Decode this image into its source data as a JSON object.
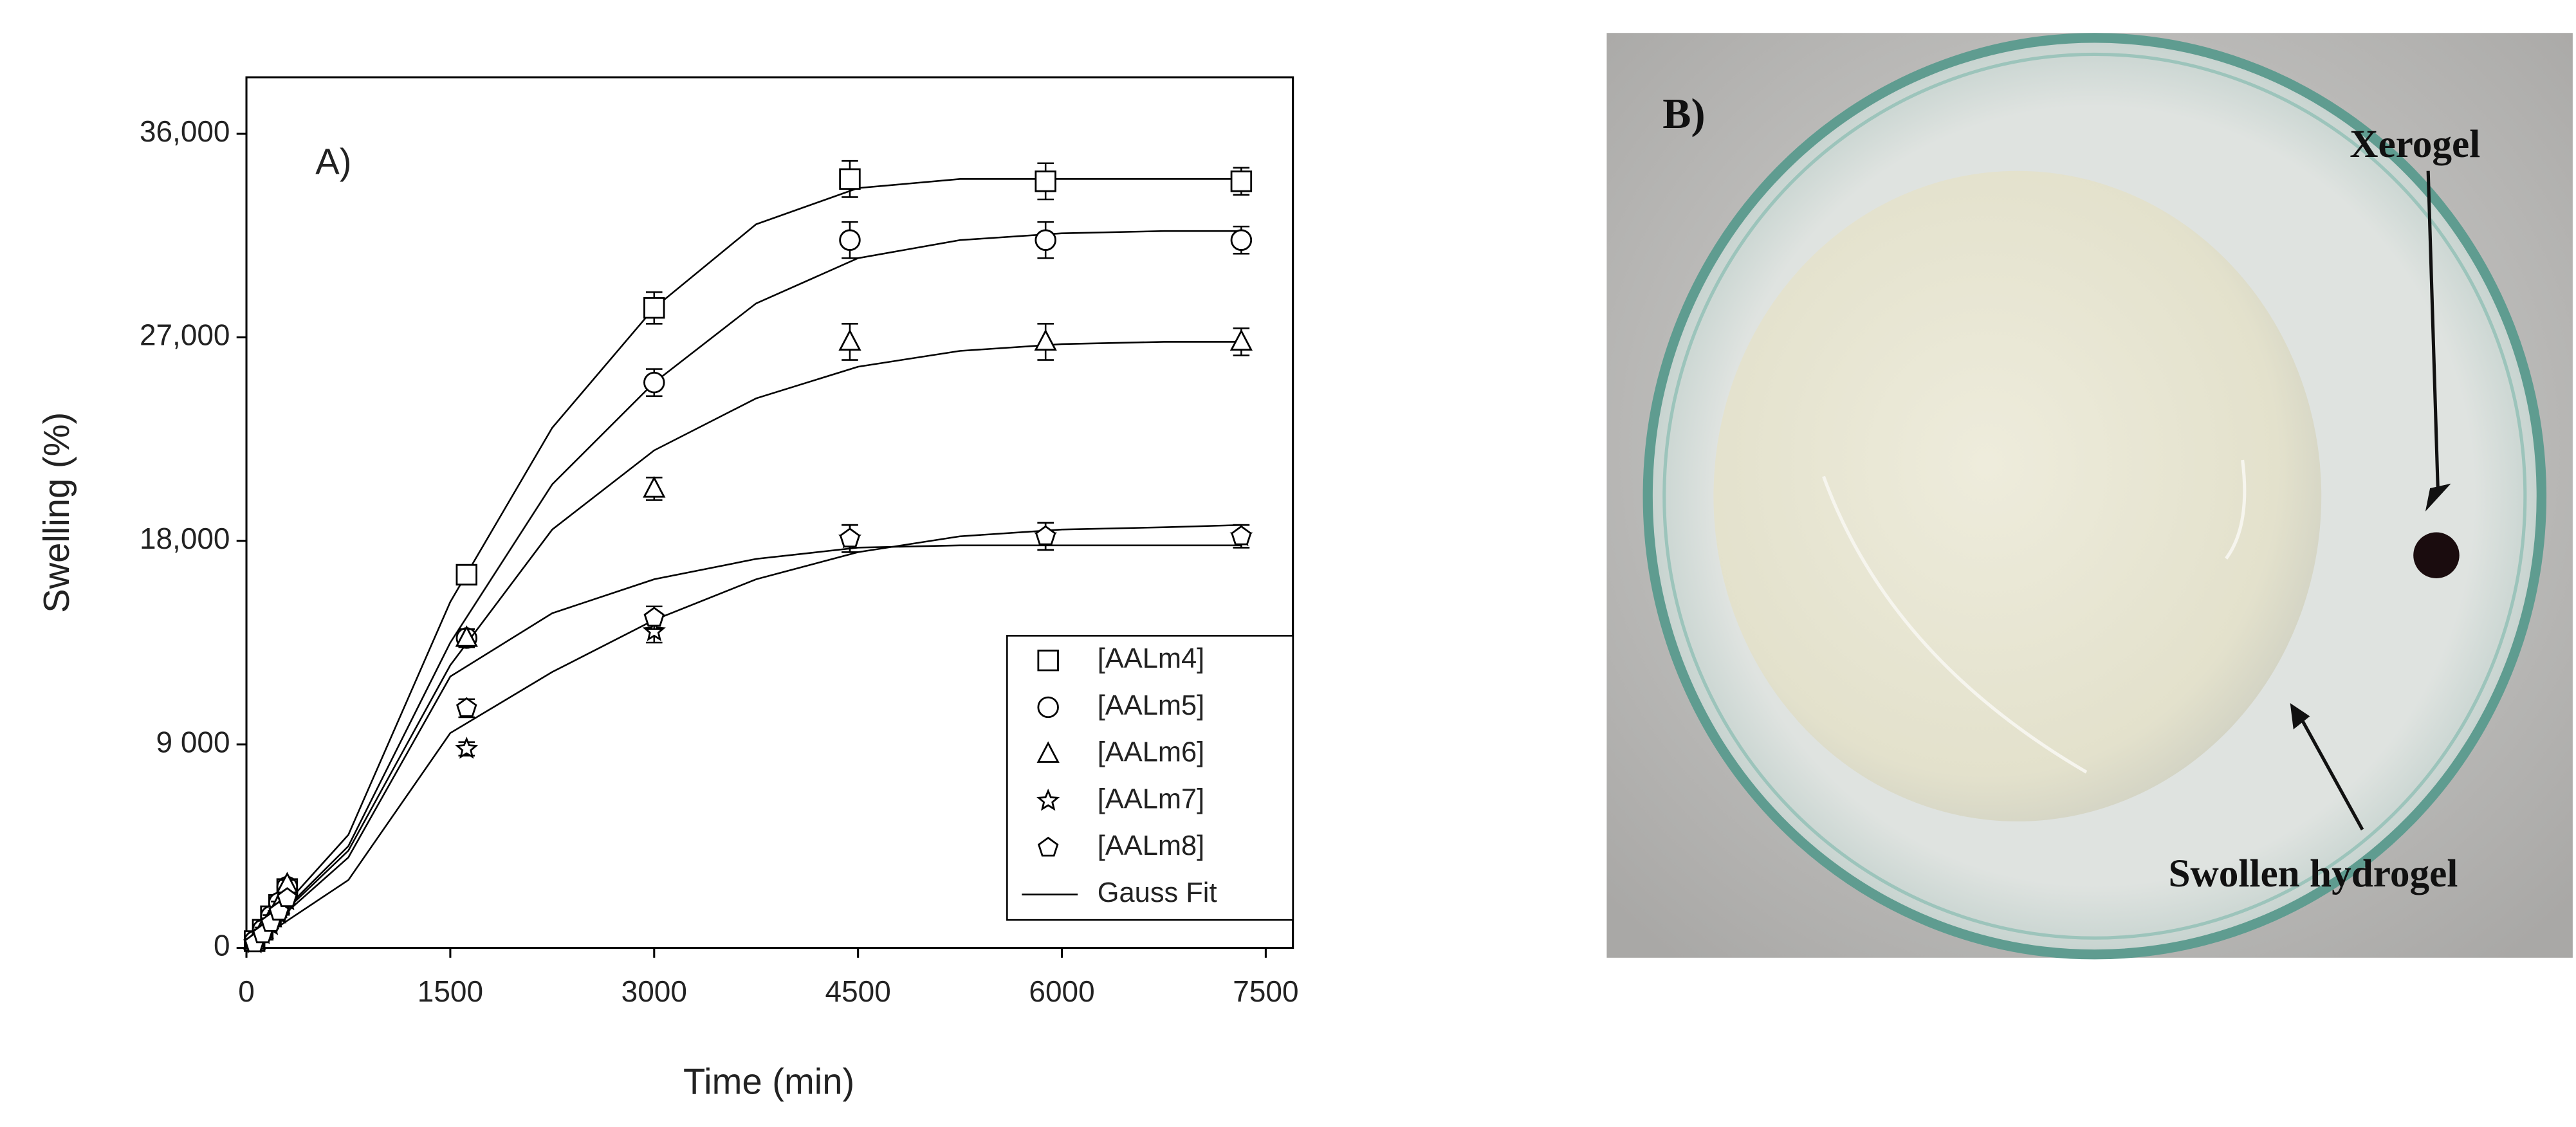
{
  "chart_data": {
    "type": "scatter",
    "annotation": "A)",
    "x_label": "Time (min)",
    "y_label": "Swelling (%)",
    "xlim": [
      0,
      7700
    ],
    "xticks": [
      0,
      1500,
      3000,
      4500,
      6000,
      7500
    ],
    "ylim": [
      0,
      38500
    ],
    "yticks": [
      0,
      {
        "value": 9000,
        "label": "9 000"
      },
      {
        "value": 18000,
        "label": "18,000"
      },
      {
        "value": 27000,
        "label": "27,000"
      },
      {
        "value": 36000,
        "label": "36,000"
      }
    ],
    "x": [
      60,
      120,
      180,
      240,
      300,
      1620,
      3000,
      4440,
      5880,
      7320
    ],
    "fit_name": "Gauss Fit",
    "fit_x": [
      0,
      750,
      1500,
      2250,
      3000,
      3750,
      4500,
      5250,
      6000,
      6750,
      7320
    ],
    "series": [
      {
        "name": "[AALm4]",
        "marker": "square",
        "color": "#000000",
        "values": [
          300,
          800,
          1400,
          1900,
          2600,
          16500,
          28300,
          34000,
          33900,
          33900
        ],
        "errors": [
          100,
          100,
          150,
          150,
          200,
          400,
          700,
          800,
          800,
          600
        ],
        "fit": [
          0,
          5000,
          15300,
          23000,
          28300,
          32000,
          33600,
          34000,
          34000,
          34000,
          34000
        ]
      },
      {
        "name": "[AALm5]",
        "marker": "circle",
        "color": "#000000",
        "values": [
          300,
          800,
          1400,
          2000,
          2700,
          13700,
          25000,
          31300,
          31300,
          31300
        ],
        "errors": [
          100,
          100,
          150,
          150,
          200,
          400,
          600,
          800,
          800,
          600
        ],
        "fit": [
          0,
          4500,
          13500,
          20500,
          25000,
          28500,
          30500,
          31300,
          31600,
          31700,
          31700
        ]
      },
      {
        "name": "[AALm6]",
        "marker": "triangle",
        "color": "#000000",
        "values": [
          300,
          800,
          1300,
          1900,
          2800,
          13700,
          20300,
          26800,
          26800,
          26800
        ],
        "errors": [
          100,
          100,
          150,
          150,
          200,
          400,
          500,
          800,
          800,
          600
        ],
        "fit": [
          0,
          4300,
          12500,
          18500,
          22000,
          24300,
          25700,
          26400,
          26700,
          26800,
          26800
        ]
      },
      {
        "name": "[AALm7]",
        "marker": "star",
        "color": "#000000",
        "values": [
          200,
          600,
          1000,
          1500,
          2100,
          8800,
          14000,
          18100,
          18200,
          18200
        ],
        "errors": [
          100,
          100,
          150,
          150,
          200,
          300,
          500,
          600,
          600,
          500
        ],
        "fit": [
          0,
          3000,
          9500,
          12200,
          14500,
          16300,
          17500,
          18200,
          18500,
          18600,
          18700
        ]
      },
      {
        "name": "[AALm8]",
        "marker": "pentagon",
        "color": "#000000",
        "values": [
          200,
          600,
          1100,
          1600,
          2200,
          10600,
          14600,
          18100,
          18200,
          18200
        ],
        "errors": [
          100,
          100,
          150,
          150,
          200,
          400,
          500,
          600,
          600,
          500
        ],
        "fit": [
          0,
          4000,
          12000,
          14800,
          16300,
          17200,
          17700,
          17800,
          17800,
          17800,
          17800
        ]
      }
    ]
  },
  "photo": {
    "label": "B)",
    "annotations": [
      "Xerogel",
      "Swollen hydrogel"
    ]
  }
}
